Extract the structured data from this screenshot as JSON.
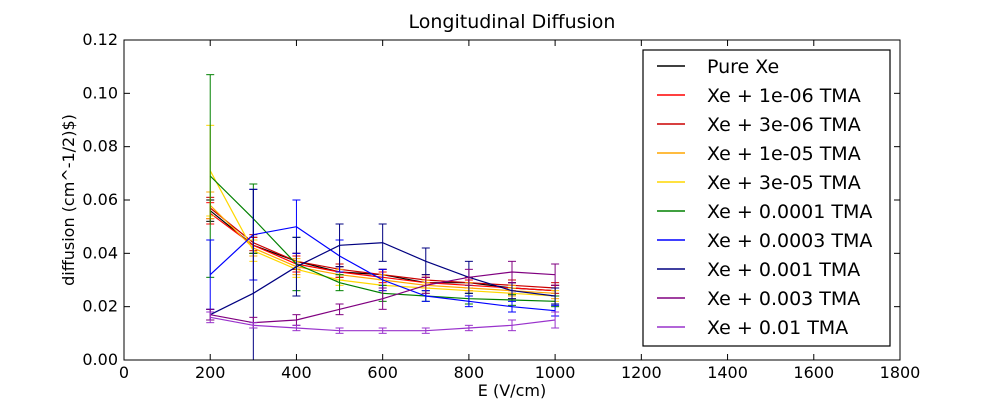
{
  "chart_data": {
    "type": "line",
    "title": "Longitudinal Diffusion",
    "xlabel": "E (V/cm)",
    "ylabel": "diffusion (cm^-1/2)$)",
    "xlim": [
      0,
      1800
    ],
    "ylim": [
      0,
      0.12
    ],
    "xticks": [
      "0",
      "200",
      "400",
      "600",
      "800",
      "1000",
      "1200",
      "1400",
      "1600",
      "1800"
    ],
    "yticks": [
      "0.00",
      "0.02",
      "0.04",
      "0.06",
      "0.08",
      "0.10",
      "0.12"
    ],
    "grid": false,
    "legend_position": "top-right",
    "x": [
      200,
      300,
      400,
      500,
      600,
      700,
      800,
      900,
      1000
    ],
    "series": [
      {
        "name": "Pure Xe",
        "color": "#000000",
        "values": [
          0.056,
          0.043,
          0.037,
          0.033,
          0.032,
          0.029,
          0.029,
          0.027,
          0.026
        ],
        "errors": [
          0.004,
          0.003,
          0.003,
          0.002,
          0.002,
          0.002,
          0.002,
          0.002,
          0.002
        ]
      },
      {
        "name": "Xe + 1e-06 TMA",
        "color": "#ff0000",
        "values": [
          0.055,
          0.043,
          0.036,
          0.033,
          0.031,
          0.029,
          0.028,
          0.027,
          0.026
        ],
        "errors": [
          0.004,
          0.003,
          0.003,
          0.002,
          0.002,
          0.002,
          0.002,
          0.002,
          0.002
        ]
      },
      {
        "name": "Xe + 3e-06 TMA",
        "color": "#cc0000",
        "values": [
          0.057,
          0.044,
          0.037,
          0.034,
          0.032,
          0.03,
          0.029,
          0.028,
          0.027
        ],
        "errors": [
          0.004,
          0.003,
          0.003,
          0.002,
          0.002,
          0.002,
          0.002,
          0.002,
          0.002
        ]
      },
      {
        "name": "Xe + 1e-05 TMA",
        "color": "#ffa500",
        "values": [
          0.058,
          0.042,
          0.035,
          0.032,
          0.03,
          0.028,
          0.027,
          0.026,
          0.025
        ],
        "errors": [
          0.005,
          0.003,
          0.003,
          0.002,
          0.002,
          0.002,
          0.002,
          0.002,
          0.002
        ]
      },
      {
        "name": "Xe + 3e-05 TMA",
        "color": "#ffd700",
        "values": [
          0.071,
          0.041,
          0.034,
          0.03,
          0.028,
          0.027,
          0.026,
          0.025,
          0.024
        ],
        "errors": [
          0.017,
          0.004,
          0.003,
          0.002,
          0.002,
          0.002,
          0.002,
          0.002,
          0.002
        ]
      },
      {
        "name": "Xe + 0.0001 TMA",
        "color": "#008000",
        "values": [
          0.069,
          0.053,
          0.036,
          0.029,
          0.025,
          0.024,
          0.023,
          0.0225,
          0.022
        ],
        "errors": [
          0.038,
          0.013,
          0.01,
          0.003,
          0.003,
          0.002,
          0.002,
          0.002,
          0.002
        ]
      },
      {
        "name": "Xe + 0.0003 TMA",
        "color": "#0000ff",
        "values": [
          0.032,
          0.047,
          0.05,
          0.039,
          0.03,
          0.024,
          0.022,
          0.02,
          0.0185
        ],
        "errors": [
          0.013,
          0.017,
          0.01,
          0.006,
          0.004,
          0.002,
          0.002,
          0.002,
          0.002
        ]
      },
      {
        "name": "Xe + 0.001 TMA",
        "color": "#000080",
        "values": [
          0.017,
          0.025,
          0.035,
          0.043,
          0.044,
          0.037,
          0.031,
          0.026,
          0.024
        ],
        "errors": [
          0.002,
          0.039,
          0.011,
          0.008,
          0.007,
          0.005,
          0.006,
          0.003,
          0.003
        ]
      },
      {
        "name": "Xe + 0.003 TMA",
        "color": "#800080",
        "values": [
          0.017,
          0.014,
          0.015,
          0.019,
          0.023,
          0.028,
          0.031,
          0.033,
          0.032
        ],
        "errors": [
          0.002,
          0.002,
          0.002,
          0.002,
          0.004,
          0.003,
          0.003,
          0.004,
          0.004
        ]
      },
      {
        "name": "Xe + 0.01 TMA",
        "color": "#9932cc",
        "values": [
          0.016,
          0.013,
          0.012,
          0.011,
          0.011,
          0.011,
          0.012,
          0.013,
          0.015
        ],
        "errors": [
          0.002,
          0.001,
          0.001,
          0.001,
          0.001,
          0.001,
          0.001,
          0.002,
          0.003
        ]
      }
    ]
  }
}
